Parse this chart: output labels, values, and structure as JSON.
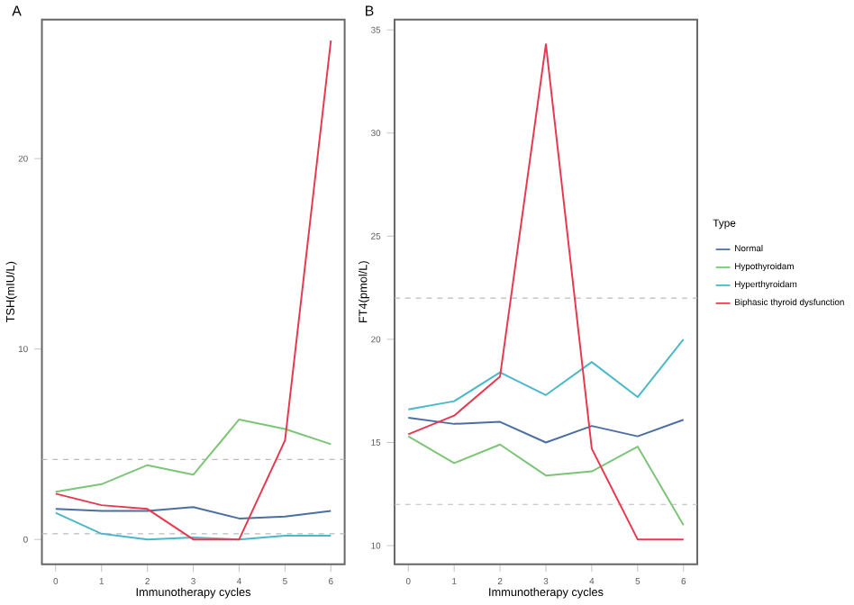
{
  "chart_data": [
    {
      "type": "line",
      "annotations": [
        "A"
      ],
      "xlabel": "Immunotherapy cycles",
      "ylabel": "TSH(mIU/L)",
      "x": [
        0,
        1,
        2,
        3,
        4,
        5,
        6
      ],
      "xlim": [
        -0.3,
        6.3
      ],
      "ylim": [
        -1.3,
        27.3
      ],
      "xticks": [
        0,
        1,
        2,
        3,
        4,
        5,
        6
      ],
      "yticks": [
        0,
        10,
        20
      ],
      "grid": false,
      "legend": false,
      "series": [
        {
          "color": "#4a6fa0",
          "values": [
            1.6,
            1.5,
            1.5,
            1.7,
            1.1,
            1.2,
            1.5
          ]
        },
        {
          "color": "#7cc576",
          "values": [
            2.5,
            2.9,
            3.9,
            3.4,
            6.3,
            5.8,
            5.0
          ]
        },
        {
          "color": "#4bb8c8",
          "values": [
            1.4,
            0.3,
            0.0,
            0.1,
            0.0,
            0.2,
            0.2
          ]
        },
        {
          "color": "#e8384f",
          "values": [
            2.4,
            1.8,
            1.6,
            0.0,
            0.0,
            5.2,
            26.2
          ]
        }
      ],
      "ref_lines": [
        {
          "axis": "y",
          "value": 4.2,
          "color": "#bbbbbb",
          "line_style": "dashed"
        },
        {
          "axis": "y",
          "value": 0.3,
          "color": "#bbbbbb",
          "line_style": "dashed"
        }
      ]
    },
    {
      "type": "line",
      "annotations": [
        "B"
      ],
      "xlabel": "Immunotherapy cycles",
      "ylabel": "FT4(pmol/L)",
      "x": [
        0,
        1,
        2,
        3,
        4,
        5,
        6
      ],
      "xlim": [
        -0.3,
        6.3
      ],
      "ylim": [
        9.1,
        35.5
      ],
      "xticks": [
        0,
        1,
        2,
        3,
        4,
        5,
        6
      ],
      "yticks": [
        10,
        15,
        20,
        25,
        30,
        35
      ],
      "grid": false,
      "legend": "right",
      "legend_title": "Type",
      "series": [
        {
          "name": "Normal",
          "color": "#4a6fa0",
          "values": [
            16.2,
            15.9,
            16.0,
            15.0,
            15.8,
            15.3,
            16.1
          ]
        },
        {
          "name": "Hypothyroidam",
          "color": "#7cc576",
          "values": [
            15.3,
            14.0,
            14.9,
            13.4,
            13.6,
            14.8,
            11.0
          ]
        },
        {
          "name": "Hyperthyroidam",
          "color": "#4bb8c8",
          "values": [
            16.6,
            17.0,
            18.4,
            17.3,
            18.9,
            17.2,
            20.0
          ]
        },
        {
          "name": "Biphasic thyroid dysfunction",
          "color": "#e8384f",
          "values": [
            15.4,
            16.3,
            18.2,
            34.3,
            14.7,
            10.3,
            10.3
          ]
        }
      ],
      "ref_lines": [
        {
          "axis": "y",
          "value": 22.0,
          "color": "#bbbbbb",
          "line_style": "dashed"
        },
        {
          "axis": "y",
          "value": 12.0,
          "color": "#bbbbbb",
          "line_style": "dashed"
        }
      ]
    }
  ]
}
